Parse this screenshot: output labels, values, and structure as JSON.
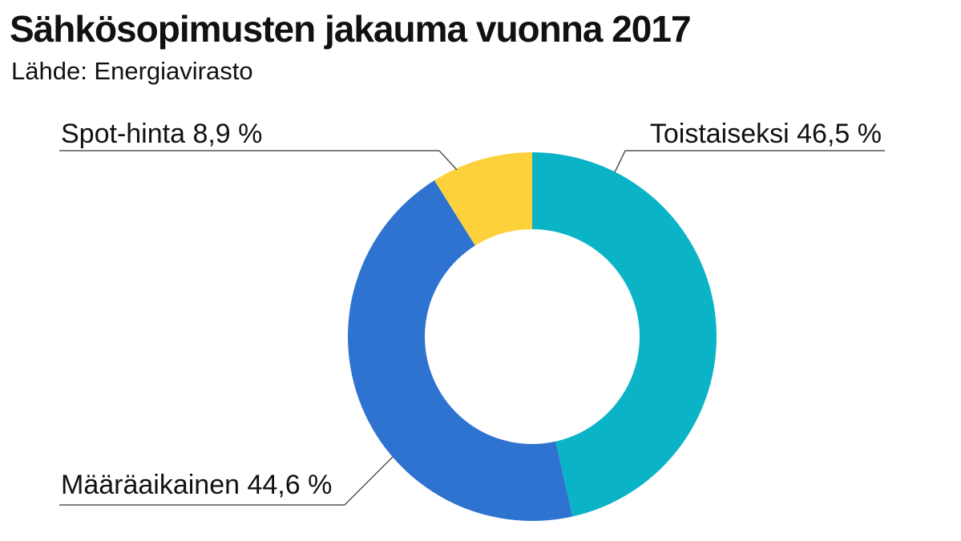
{
  "chart_data": {
    "type": "pie",
    "variant": "donut",
    "title": "Sähkösopimusten jakauma vuonna 2017",
    "subtitle": "Lähde: Energiavirasto",
    "slices": [
      {
        "label": "Toistaiseksi",
        "value": 46.5,
        "display": "Toistaiseksi 46,5 %",
        "color": "#0bb3c6"
      },
      {
        "label": "Määräaikainen",
        "value": 44.6,
        "display": "Määräaikainen 44,6 %",
        "color": "#2e73d0"
      },
      {
        "label": "Spot-hinta",
        "value": 8.9,
        "display": "Spot-hinta 8,9 %",
        "color": "#fdd13b"
      }
    ],
    "unit": "%",
    "start_angle_deg": 0,
    "direction": "clockwise",
    "legend": "none"
  }
}
